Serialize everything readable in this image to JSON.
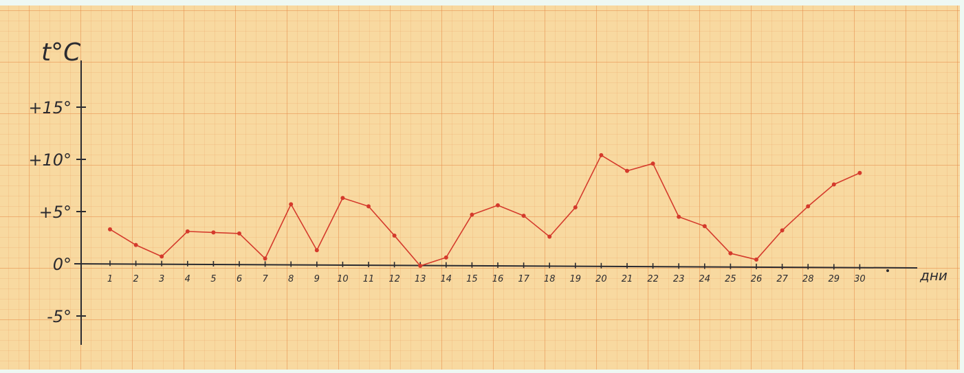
{
  "chart_data": {
    "type": "line",
    "y_axis_label": "t°C",
    "x_axis_label": "дни",
    "y_ticks": [
      {
        "value": 15,
        "label": "+15°"
      },
      {
        "value": 10,
        "label": "+10°"
      },
      {
        "value": 5,
        "label": "+5°"
      },
      {
        "value": 0,
        "label": "0°"
      },
      {
        "value": -5,
        "label": "-5°"
      }
    ],
    "x": [
      "1",
      "2",
      "3",
      "4",
      "5",
      "6",
      "7",
      "8",
      "9",
      "10",
      "11",
      "12",
      "13",
      "14",
      "15",
      "16",
      "17",
      "18",
      "19",
      "20",
      "21",
      "22",
      "23",
      "24",
      "25",
      "26",
      "27",
      "28",
      "29",
      "30"
    ],
    "series": [
      {
        "values": [
          3.3,
          1.8,
          0.7,
          3.1,
          3.0,
          2.9,
          0.5,
          5.7,
          1.3,
          6.3,
          5.5,
          2.7,
          -0.2,
          0.6,
          4.7,
          5.6,
          4.6,
          2.6,
          5.4,
          10.4,
          8.9,
          9.6,
          4.5,
          3.6,
          1.0,
          0.4,
          3.2,
          5.5,
          7.6,
          8.7
        ],
        "color": "#d43a2c"
      }
    ],
    "ylim": [
      -8,
      20
    ],
    "grid": true,
    "colors": {
      "line": "#d43a2c",
      "axis": "#2b2b30",
      "paper": "#f8d9a0",
      "grid": "#e48c46"
    }
  }
}
